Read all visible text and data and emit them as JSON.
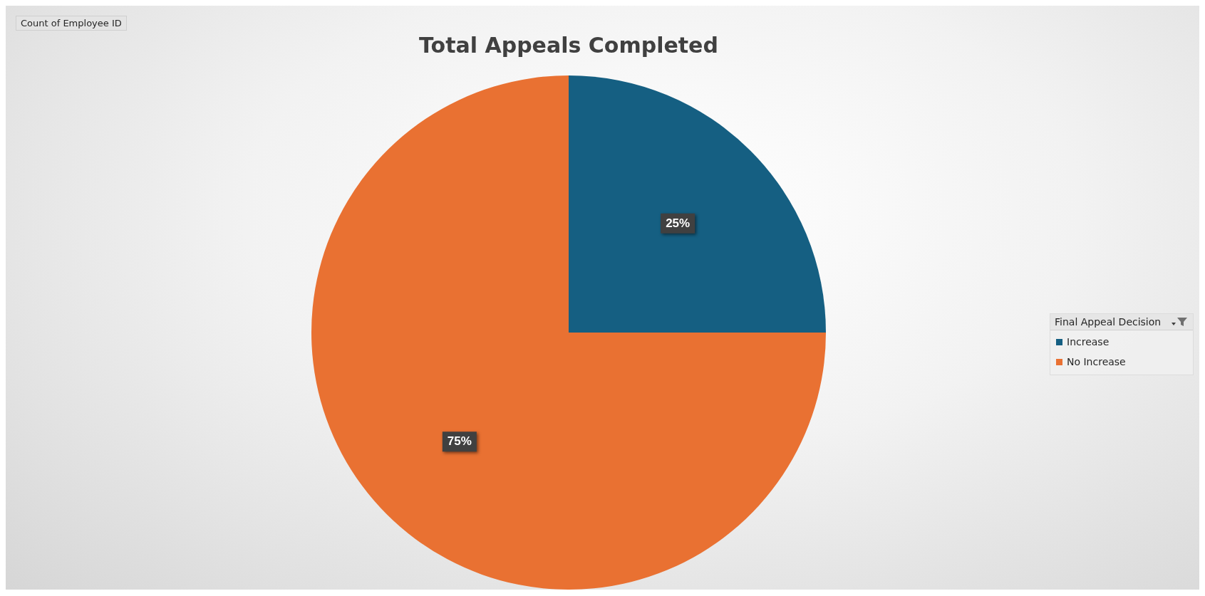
{
  "chart_data": {
    "type": "pie",
    "title": "Total Appeals Completed",
    "categories": [
      "Increase",
      "No Increase"
    ],
    "values": [
      25,
      75
    ],
    "colors": [
      "#155f82",
      "#e97132"
    ],
    "value_labels": [
      "25%",
      "75%"
    ],
    "legend": "right",
    "legend_title": "Final Appeal Decision",
    "annotations": [
      "Count of Employee ID"
    ]
  }
}
